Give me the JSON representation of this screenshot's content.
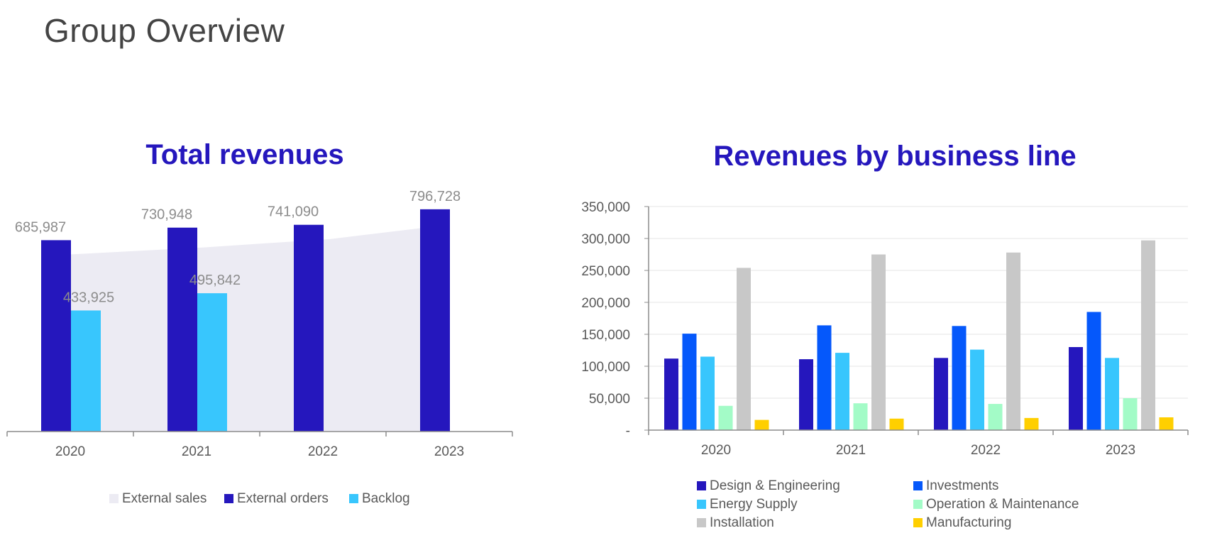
{
  "page": {
    "title": "Group Overview"
  },
  "chart_data": [
    {
      "type": "bar",
      "title": "Total revenues",
      "categories": [
        "2020",
        "2021",
        "2022",
        "2023"
      ],
      "series": [
        {
          "name": "External sales",
          "kind": "area",
          "color": "#ecebf3",
          "values": [
            635000,
            660000,
            690000,
            740000
          ]
        },
        {
          "name": "External orders",
          "kind": "bar",
          "color": "#2517bd",
          "values": [
            685987,
            730948,
            741090,
            796728
          ],
          "labels": [
            "685,987",
            "730,948",
            "741,090",
            "796,728"
          ]
        },
        {
          "name": "Backlog",
          "kind": "bar",
          "color": "#38c6fd",
          "values": [
            433925,
            495842,
            null,
            null
          ],
          "labels": [
            "433,925",
            "495,842",
            "",
            ""
          ]
        }
      ],
      "ylim": [
        0,
        860000
      ],
      "legend": "bottom",
      "grid": false
    },
    {
      "type": "bar",
      "title": "Revenues by business line",
      "categories": [
        "2020",
        "2021",
        "2022",
        "2023"
      ],
      "y_ticks": [
        "-",
        "50,000",
        "100,000",
        "150,000",
        "200,000",
        "250,000",
        "300,000",
        "350,000"
      ],
      "ylim": [
        0,
        350000
      ],
      "grid": true,
      "legend": "bottom",
      "series": [
        {
          "name": "Design & Engineering",
          "color": "#2517bd",
          "values": [
            112000,
            111000,
            113000,
            130000
          ]
        },
        {
          "name": "Investments",
          "color": "#0558fb",
          "values": [
            151000,
            164000,
            163000,
            185000
          ]
        },
        {
          "name": "Energy Supply",
          "color": "#38c6fd",
          "values": [
            115000,
            121000,
            126000,
            113000
          ]
        },
        {
          "name": "Operation & Maintenance",
          "color": "#a3fbc7",
          "values": [
            38000,
            42000,
            41000,
            50000
          ]
        },
        {
          "name": "Installation",
          "color": "#c8c8c8",
          "values": [
            254000,
            275000,
            278000,
            297000
          ]
        },
        {
          "name": "Manufacturing",
          "color": "#ffcf00",
          "values": [
            16000,
            18000,
            19000,
            20000
          ]
        }
      ]
    }
  ]
}
